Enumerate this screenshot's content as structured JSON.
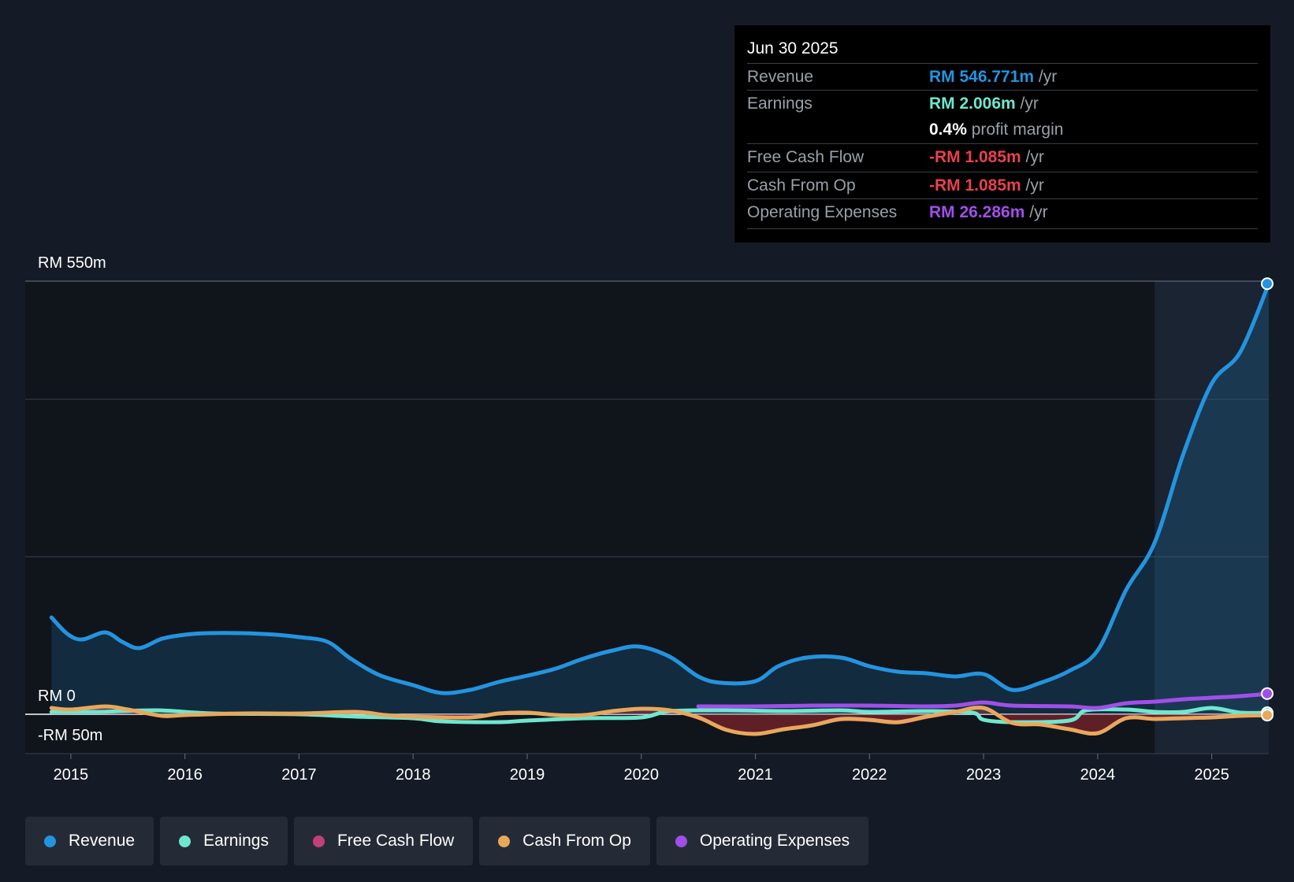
{
  "tooltip": {
    "date": "Jun 30 2025",
    "rows": [
      {
        "label": "Revenue",
        "value": "RM 546.771m",
        "unit": "/yr",
        "color": "#2394df"
      },
      {
        "label": "Earnings",
        "value": "RM 2.006m",
        "unit": "/yr",
        "color": "#6ee7cf"
      },
      {
        "label": "",
        "value": "0.4%",
        "unit": "profit margin",
        "color": "#ffffff"
      },
      {
        "label": "Free Cash Flow",
        "value": "-RM 1.085m",
        "unit": "/yr",
        "color": "#e8414f"
      },
      {
        "label": "Cash From Op",
        "value": "-RM 1.085m",
        "unit": "/yr",
        "color": "#e8414f"
      },
      {
        "label": "Operating Expenses",
        "value": "RM 26.286m",
        "unit": "/yr",
        "color": "#a04fe8"
      }
    ]
  },
  "legend": [
    {
      "label": "Revenue",
      "color": "#2394df"
    },
    {
      "label": "Earnings",
      "color": "#6ee7cf"
    },
    {
      "label": "Free Cash Flow",
      "color": "#c2407a"
    },
    {
      "label": "Cash From Op",
      "color": "#e8a85c"
    },
    {
      "label": "Operating Expenses",
      "color": "#a04fe8"
    }
  ],
  "chart_data": {
    "type": "line",
    "y_labels": [
      "RM 550m",
      "RM 0",
      "-RM 50m"
    ],
    "ylim": [
      -50,
      550
    ],
    "x_ticks": [
      "2015",
      "2016",
      "2017",
      "2018",
      "2019",
      "2020",
      "2021",
      "2022",
      "2023",
      "2024",
      "2025"
    ],
    "xlim": [
      2014.6,
      2025.5
    ],
    "forecast_start": 2024.5,
    "grid": true,
    "series": [
      {
        "name": "Revenue",
        "color": "#2394df",
        "fill": true,
        "points": [
          [
            2014.83,
            123
          ],
          [
            2014.97,
            102
          ],
          [
            2015.1,
            95
          ],
          [
            2015.3,
            104
          ],
          [
            2015.45,
            92
          ],
          [
            2015.6,
            84
          ],
          [
            2015.8,
            96
          ],
          [
            2016.0,
            101
          ],
          [
            2016.2,
            103
          ],
          [
            2016.5,
            103
          ],
          [
            2016.8,
            101
          ],
          [
            2017.0,
            98
          ],
          [
            2017.25,
            92
          ],
          [
            2017.45,
            71
          ],
          [
            2017.7,
            50
          ],
          [
            2018.0,
            37
          ],
          [
            2018.25,
            27
          ],
          [
            2018.5,
            31
          ],
          [
            2018.75,
            41
          ],
          [
            2019.0,
            49
          ],
          [
            2019.25,
            58
          ],
          [
            2019.5,
            71
          ],
          [
            2019.75,
            81
          ],
          [
            2019.98,
            86
          ],
          [
            2020.25,
            73
          ],
          [
            2020.5,
            48
          ],
          [
            2020.7,
            40
          ],
          [
            2021.0,
            42
          ],
          [
            2021.2,
            61
          ],
          [
            2021.45,
            72
          ],
          [
            2021.75,
            72
          ],
          [
            2022.0,
            61
          ],
          [
            2022.25,
            54
          ],
          [
            2022.5,
            52
          ],
          [
            2022.75,
            48
          ],
          [
            2023.0,
            51
          ],
          [
            2023.25,
            31
          ],
          [
            2023.5,
            40
          ],
          [
            2023.75,
            55
          ],
          [
            2024.0,
            81
          ],
          [
            2024.25,
            158
          ],
          [
            2024.5,
            218
          ],
          [
            2024.75,
            330
          ],
          [
            2025.0,
            420
          ],
          [
            2025.25,
            460
          ],
          [
            2025.5,
            546.771
          ]
        ]
      },
      {
        "name": "Earnings",
        "color": "#6ee7cf",
        "fill": false,
        "points": [
          [
            2014.83,
            3
          ],
          [
            2015.25,
            3
          ],
          [
            2015.75,
            5
          ],
          [
            2016.25,
            1
          ],
          [
            2017.0,
            0
          ],
          [
            2017.5,
            -3
          ],
          [
            2018.0,
            -5
          ],
          [
            2018.25,
            -9
          ],
          [
            2018.75,
            -10
          ],
          [
            2019.0,
            -8
          ],
          [
            2019.5,
            -5
          ],
          [
            2020.0,
            -4
          ],
          [
            2020.25,
            4
          ],
          [
            2020.75,
            5
          ],
          [
            2021.25,
            4
          ],
          [
            2021.75,
            5
          ],
          [
            2022.0,
            3
          ],
          [
            2022.5,
            4
          ],
          [
            2022.9,
            2
          ],
          [
            2023.0,
            -7
          ],
          [
            2023.25,
            -10
          ],
          [
            2023.75,
            -8
          ],
          [
            2023.9,
            5
          ],
          [
            2024.25,
            6
          ],
          [
            2024.5,
            3
          ],
          [
            2024.75,
            3
          ],
          [
            2025.0,
            8
          ],
          [
            2025.25,
            2
          ],
          [
            2025.5,
            2.006
          ]
        ]
      },
      {
        "name": "Free Cash Flow",
        "color": "#c2407a",
        "fill": true,
        "points": [
          [
            2014.83,
            6
          ],
          [
            2015.0,
            3
          ],
          [
            2015.3,
            8
          ],
          [
            2015.5,
            5
          ],
          [
            2015.8,
            -2
          ],
          [
            2016.0,
            -1
          ],
          [
            2016.5,
            0
          ],
          [
            2017.0,
            1
          ],
          [
            2017.5,
            2
          ],
          [
            2017.75,
            -1
          ],
          [
            2018.0,
            -3
          ],
          [
            2018.5,
            -5
          ],
          [
            2018.75,
            0
          ],
          [
            2019.0,
            1
          ],
          [
            2019.25,
            -1
          ],
          [
            2019.5,
            -1
          ],
          [
            2019.75,
            4
          ],
          [
            2020.0,
            6
          ],
          [
            2020.25,
            4
          ],
          [
            2020.5,
            -6
          ],
          [
            2020.75,
            -20
          ],
          [
            2021.0,
            -25
          ],
          [
            2021.25,
            -20
          ],
          [
            2021.5,
            -15
          ],
          [
            2021.75,
            -8
          ],
          [
            2022.0,
            -9
          ],
          [
            2022.25,
            -12
          ],
          [
            2022.5,
            -5
          ],
          [
            2022.75,
            1
          ],
          [
            2023.0,
            7
          ],
          [
            2023.25,
            -12
          ],
          [
            2023.5,
            -13
          ],
          [
            2023.75,
            -18
          ],
          [
            2024.0,
            -23
          ],
          [
            2024.25,
            -5
          ],
          [
            2024.5,
            -6
          ],
          [
            2024.75,
            -5
          ],
          [
            2025.0,
            -4
          ],
          [
            2025.25,
            -2
          ],
          [
            2025.5,
            -1.085
          ]
        ]
      },
      {
        "name": "Cash From Op",
        "color": "#e8a85c",
        "fill": false,
        "points": [
          [
            2014.83,
            8
          ],
          [
            2015.0,
            6
          ],
          [
            2015.3,
            10
          ],
          [
            2015.5,
            6
          ],
          [
            2015.8,
            -2
          ],
          [
            2016.0,
            -1
          ],
          [
            2016.5,
            1
          ],
          [
            2017.0,
            1
          ],
          [
            2017.5,
            3
          ],
          [
            2017.75,
            -1
          ],
          [
            2018.0,
            -3
          ],
          [
            2018.5,
            -4
          ],
          [
            2018.75,
            1
          ],
          [
            2019.0,
            2
          ],
          [
            2019.25,
            -1
          ],
          [
            2019.5,
            -1
          ],
          [
            2019.75,
            4
          ],
          [
            2020.0,
            7
          ],
          [
            2020.25,
            5
          ],
          [
            2020.5,
            -4
          ],
          [
            2020.75,
            -20
          ],
          [
            2021.0,
            -25
          ],
          [
            2021.25,
            -19
          ],
          [
            2021.5,
            -14
          ],
          [
            2021.75,
            -6
          ],
          [
            2022.0,
            -7
          ],
          [
            2022.25,
            -10
          ],
          [
            2022.5,
            -3
          ],
          [
            2022.75,
            3
          ],
          [
            2023.0,
            8
          ],
          [
            2023.25,
            -11
          ],
          [
            2023.5,
            -13
          ],
          [
            2023.75,
            -19
          ],
          [
            2024.0,
            -24
          ],
          [
            2024.25,
            -5
          ],
          [
            2024.5,
            -6
          ],
          [
            2024.75,
            -5
          ],
          [
            2025.0,
            -4
          ],
          [
            2025.25,
            -2
          ],
          [
            2025.5,
            -1.085
          ]
        ]
      },
      {
        "name": "Operating Expenses",
        "color": "#a04fe8",
        "fill": false,
        "points": [
          [
            2020.5,
            10
          ],
          [
            2021.0,
            10
          ],
          [
            2021.5,
            11
          ],
          [
            2022.0,
            11
          ],
          [
            2022.5,
            10
          ],
          [
            2022.75,
            11
          ],
          [
            2023.0,
            15
          ],
          [
            2023.25,
            11
          ],
          [
            2023.75,
            10
          ],
          [
            2024.0,
            8
          ],
          [
            2024.25,
            14
          ],
          [
            2024.5,
            16
          ],
          [
            2024.75,
            19
          ],
          [
            2025.0,
            21
          ],
          [
            2025.25,
            23
          ],
          [
            2025.5,
            26.286
          ]
        ]
      }
    ]
  }
}
